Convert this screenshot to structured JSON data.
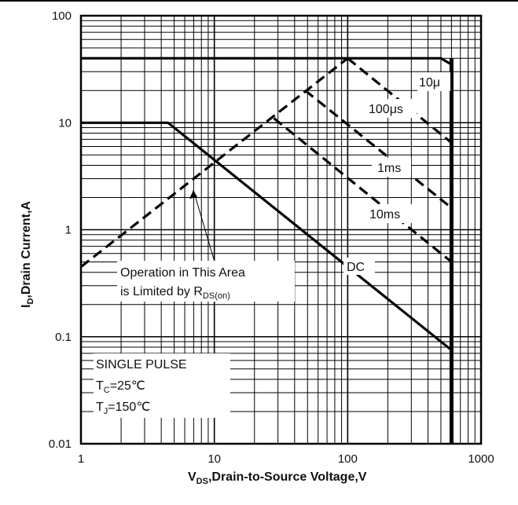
{
  "chart_data": {
    "type": "line",
    "title": "",
    "xlabel": {
      "main": "V",
      "sub": "DS",
      "rest": ",Drain-to-Source Voltage,V"
    },
    "ylabel": {
      "main": "I",
      "sub": "D",
      "rest": ",Drain Current,A"
    },
    "x_scale": "log",
    "y_scale": "log",
    "xlim": [
      1,
      1000
    ],
    "ylim": [
      0.01,
      100
    ],
    "grid": true,
    "x_ticks": [
      {
        "value": 1,
        "label": "1"
      },
      {
        "value": 10,
        "label": "10"
      },
      {
        "value": 100,
        "label": "100"
      },
      {
        "value": 1000,
        "label": "1000"
      }
    ],
    "y_ticks": [
      {
        "value": 100,
        "label": "100"
      },
      {
        "value": 10,
        "label": "10"
      },
      {
        "value": 1,
        "label": "1"
      },
      {
        "value": 0.1,
        "label": "0.1"
      },
      {
        "value": 0.01,
        "label": "0.01"
      }
    ],
    "series": [
      {
        "key": "rds_limit",
        "style": "dashed",
        "points": [
          [
            1,
            0.45
          ],
          [
            100,
            40
          ]
        ]
      },
      {
        "key": "upper_limit",
        "style": "solid",
        "points": [
          [
            1,
            40
          ],
          [
            500,
            40
          ],
          [
            600,
            35
          ]
        ]
      },
      {
        "key": "10us",
        "style": "dashed",
        "points": [
          [
            100,
            40
          ],
          [
            600,
            6.5
          ]
        ]
      },
      {
        "key": "100us",
        "style": "dashed",
        "points": [
          [
            48,
            20
          ],
          [
            600,
            1.6
          ]
        ]
      },
      {
        "key": "1ms",
        "style": "dashed",
        "points": [
          [
            28,
            11
          ],
          [
            600,
            0.5
          ]
        ]
      },
      {
        "key": "dc",
        "style": "solid",
        "points": [
          [
            1,
            10
          ],
          [
            4.5,
            10
          ],
          [
            600,
            0.075
          ]
        ]
      },
      {
        "key": "vds_limit",
        "style": "solid",
        "points": [
          [
            600,
            0.01
          ],
          [
            600,
            40
          ]
        ]
      }
    ],
    "annotations": {
      "label_10us": "10μ",
      "label_100us": "100μs",
      "label_1ms": "1ms",
      "label_10ms": "10ms",
      "label_dc": "DC",
      "rds_line1": "Operation in This Area",
      "rds_line2_prefix": "is Limited by R",
      "rds_line2_sub": "DS(on)",
      "pulse_title": "SINGLE PULSE",
      "tc_main": "T",
      "tc_sub": "C",
      "tc_rest": "=25℃",
      "tj_main": "T",
      "tj_sub": "J",
      "tj_rest": "=150℃"
    },
    "colors": {
      "line": "#000000",
      "grid": "#000000",
      "label_box": "#ffffff"
    }
  }
}
